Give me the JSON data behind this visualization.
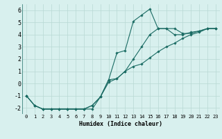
{
  "xlabel": "Humidex (Indice chaleur)",
  "ylabel": "",
  "bg_color": "#d8f0ee",
  "line_color": "#1a6b63",
  "grid_color": "#b8d8d4",
  "xlim": [
    -0.5,
    23.5
  ],
  "ylim": [
    -2.5,
    6.5
  ],
  "xticks": [
    0,
    1,
    2,
    3,
    4,
    5,
    6,
    7,
    8,
    9,
    10,
    11,
    12,
    13,
    14,
    15,
    16,
    17,
    18,
    19,
    20,
    21,
    22,
    23
  ],
  "yticks": [
    -2,
    -1,
    0,
    1,
    2,
    3,
    4,
    5,
    6
  ],
  "line1_x": [
    0,
    1,
    2,
    3,
    4,
    5,
    6,
    7,
    8,
    9,
    10,
    11,
    12,
    13,
    14,
    15,
    16,
    17,
    18,
    19,
    20,
    21,
    22,
    23
  ],
  "line1_y": [
    -1.0,
    -1.8,
    -2.1,
    -2.1,
    -2.1,
    -2.1,
    -2.1,
    -2.1,
    -2.1,
    -1.1,
    0.1,
    0.4,
    1.0,
    1.4,
    1.6,
    2.1,
    2.6,
    3.0,
    3.3,
    3.7,
    4.0,
    4.2,
    4.5,
    4.5
  ],
  "line2_x": [
    0,
    1,
    2,
    3,
    4,
    5,
    6,
    7,
    8,
    9,
    10,
    11,
    12,
    13,
    14,
    15,
    16,
    17,
    18,
    19,
    20,
    21,
    22,
    23
  ],
  "line2_y": [
    -1.0,
    -1.8,
    -2.1,
    -2.1,
    -2.1,
    -2.1,
    -2.1,
    -2.1,
    -1.8,
    -1.1,
    0.3,
    2.5,
    2.7,
    5.1,
    5.6,
    6.1,
    4.5,
    4.5,
    4.5,
    4.1,
    4.1,
    4.3,
    4.5,
    4.5
  ],
  "line3_x": [
    0,
    1,
    2,
    3,
    4,
    5,
    6,
    7,
    8,
    9,
    10,
    11,
    12,
    13,
    14,
    15,
    16,
    17,
    18,
    19,
    20,
    21,
    22,
    23
  ],
  "line3_y": [
    -1.0,
    -1.8,
    -2.1,
    -2.1,
    -2.1,
    -2.1,
    -2.1,
    -2.1,
    -1.8,
    -1.1,
    0.3,
    0.4,
    1.0,
    2.0,
    3.0,
    4.0,
    4.5,
    4.5,
    4.0,
    4.0,
    4.2,
    4.3,
    4.5,
    4.5
  ],
  "xlabel_fontsize": 6,
  "tick_fontsize": 5,
  "linewidth": 0.8,
  "markersize": 1.8
}
